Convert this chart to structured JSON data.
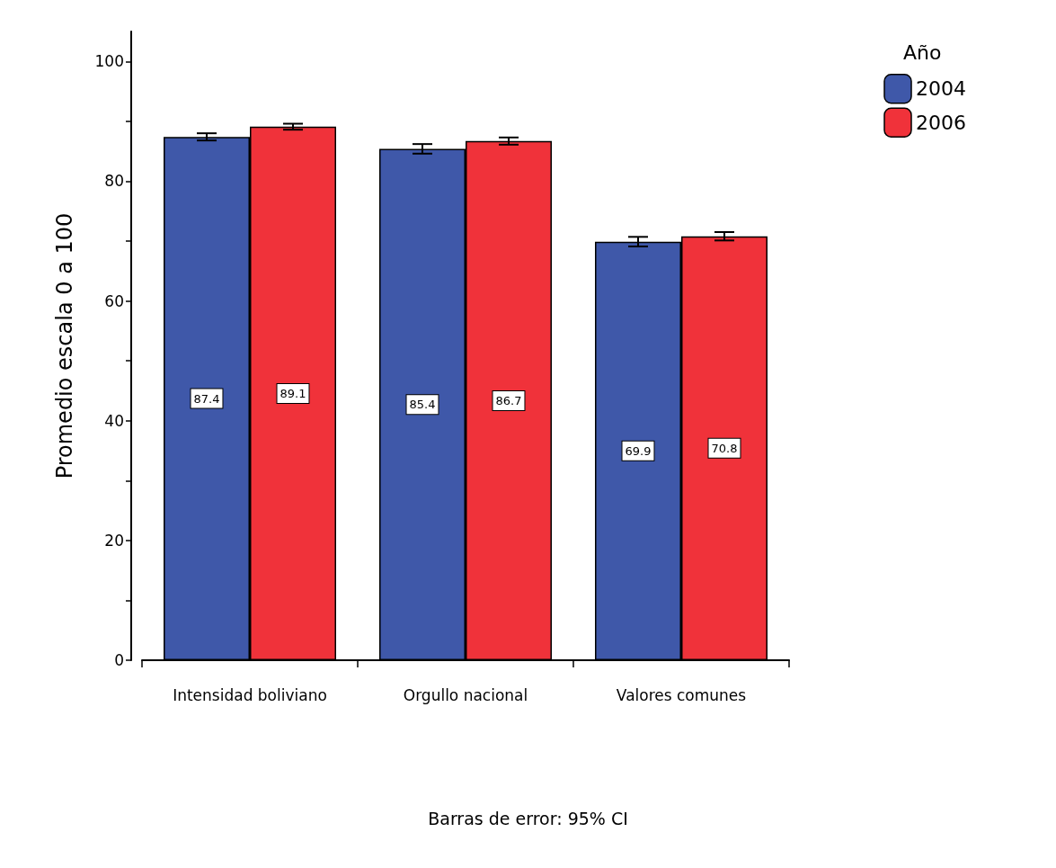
{
  "chart_data": {
    "type": "bar",
    "ylabel": "Promedio escala 0 a 100",
    "legend_title": "Año",
    "categories": [
      "Intensidad boliviano",
      "Orgullo nacional",
      "Valores comunes"
    ],
    "series": [
      {
        "name": "2004",
        "color": "#3f58a9",
        "values": [
          87.4,
          85.4,
          69.9
        ],
        "errors": [
          0.6,
          0.8,
          0.8
        ]
      },
      {
        "name": "2006",
        "color": "#f0323a",
        "values": [
          89.1,
          86.7,
          70.8
        ],
        "errors": [
          0.5,
          0.6,
          0.7
        ]
      }
    ],
    "data_labels": true,
    "legend": "top right",
    "grid": false,
    "ylim": [
      0,
      105
    ],
    "yticks": [
      0,
      {
        "value": 10,
        "label": null
      },
      20,
      {
        "value": 30,
        "label": null
      },
      40,
      {
        "value": 50,
        "label": null
      },
      60,
      {
        "value": 70,
        "label": null
      },
      80,
      {
        "value": 90,
        "label": null
      },
      100
    ],
    "annotations": [
      "Barras de error: 95% CI"
    ]
  }
}
